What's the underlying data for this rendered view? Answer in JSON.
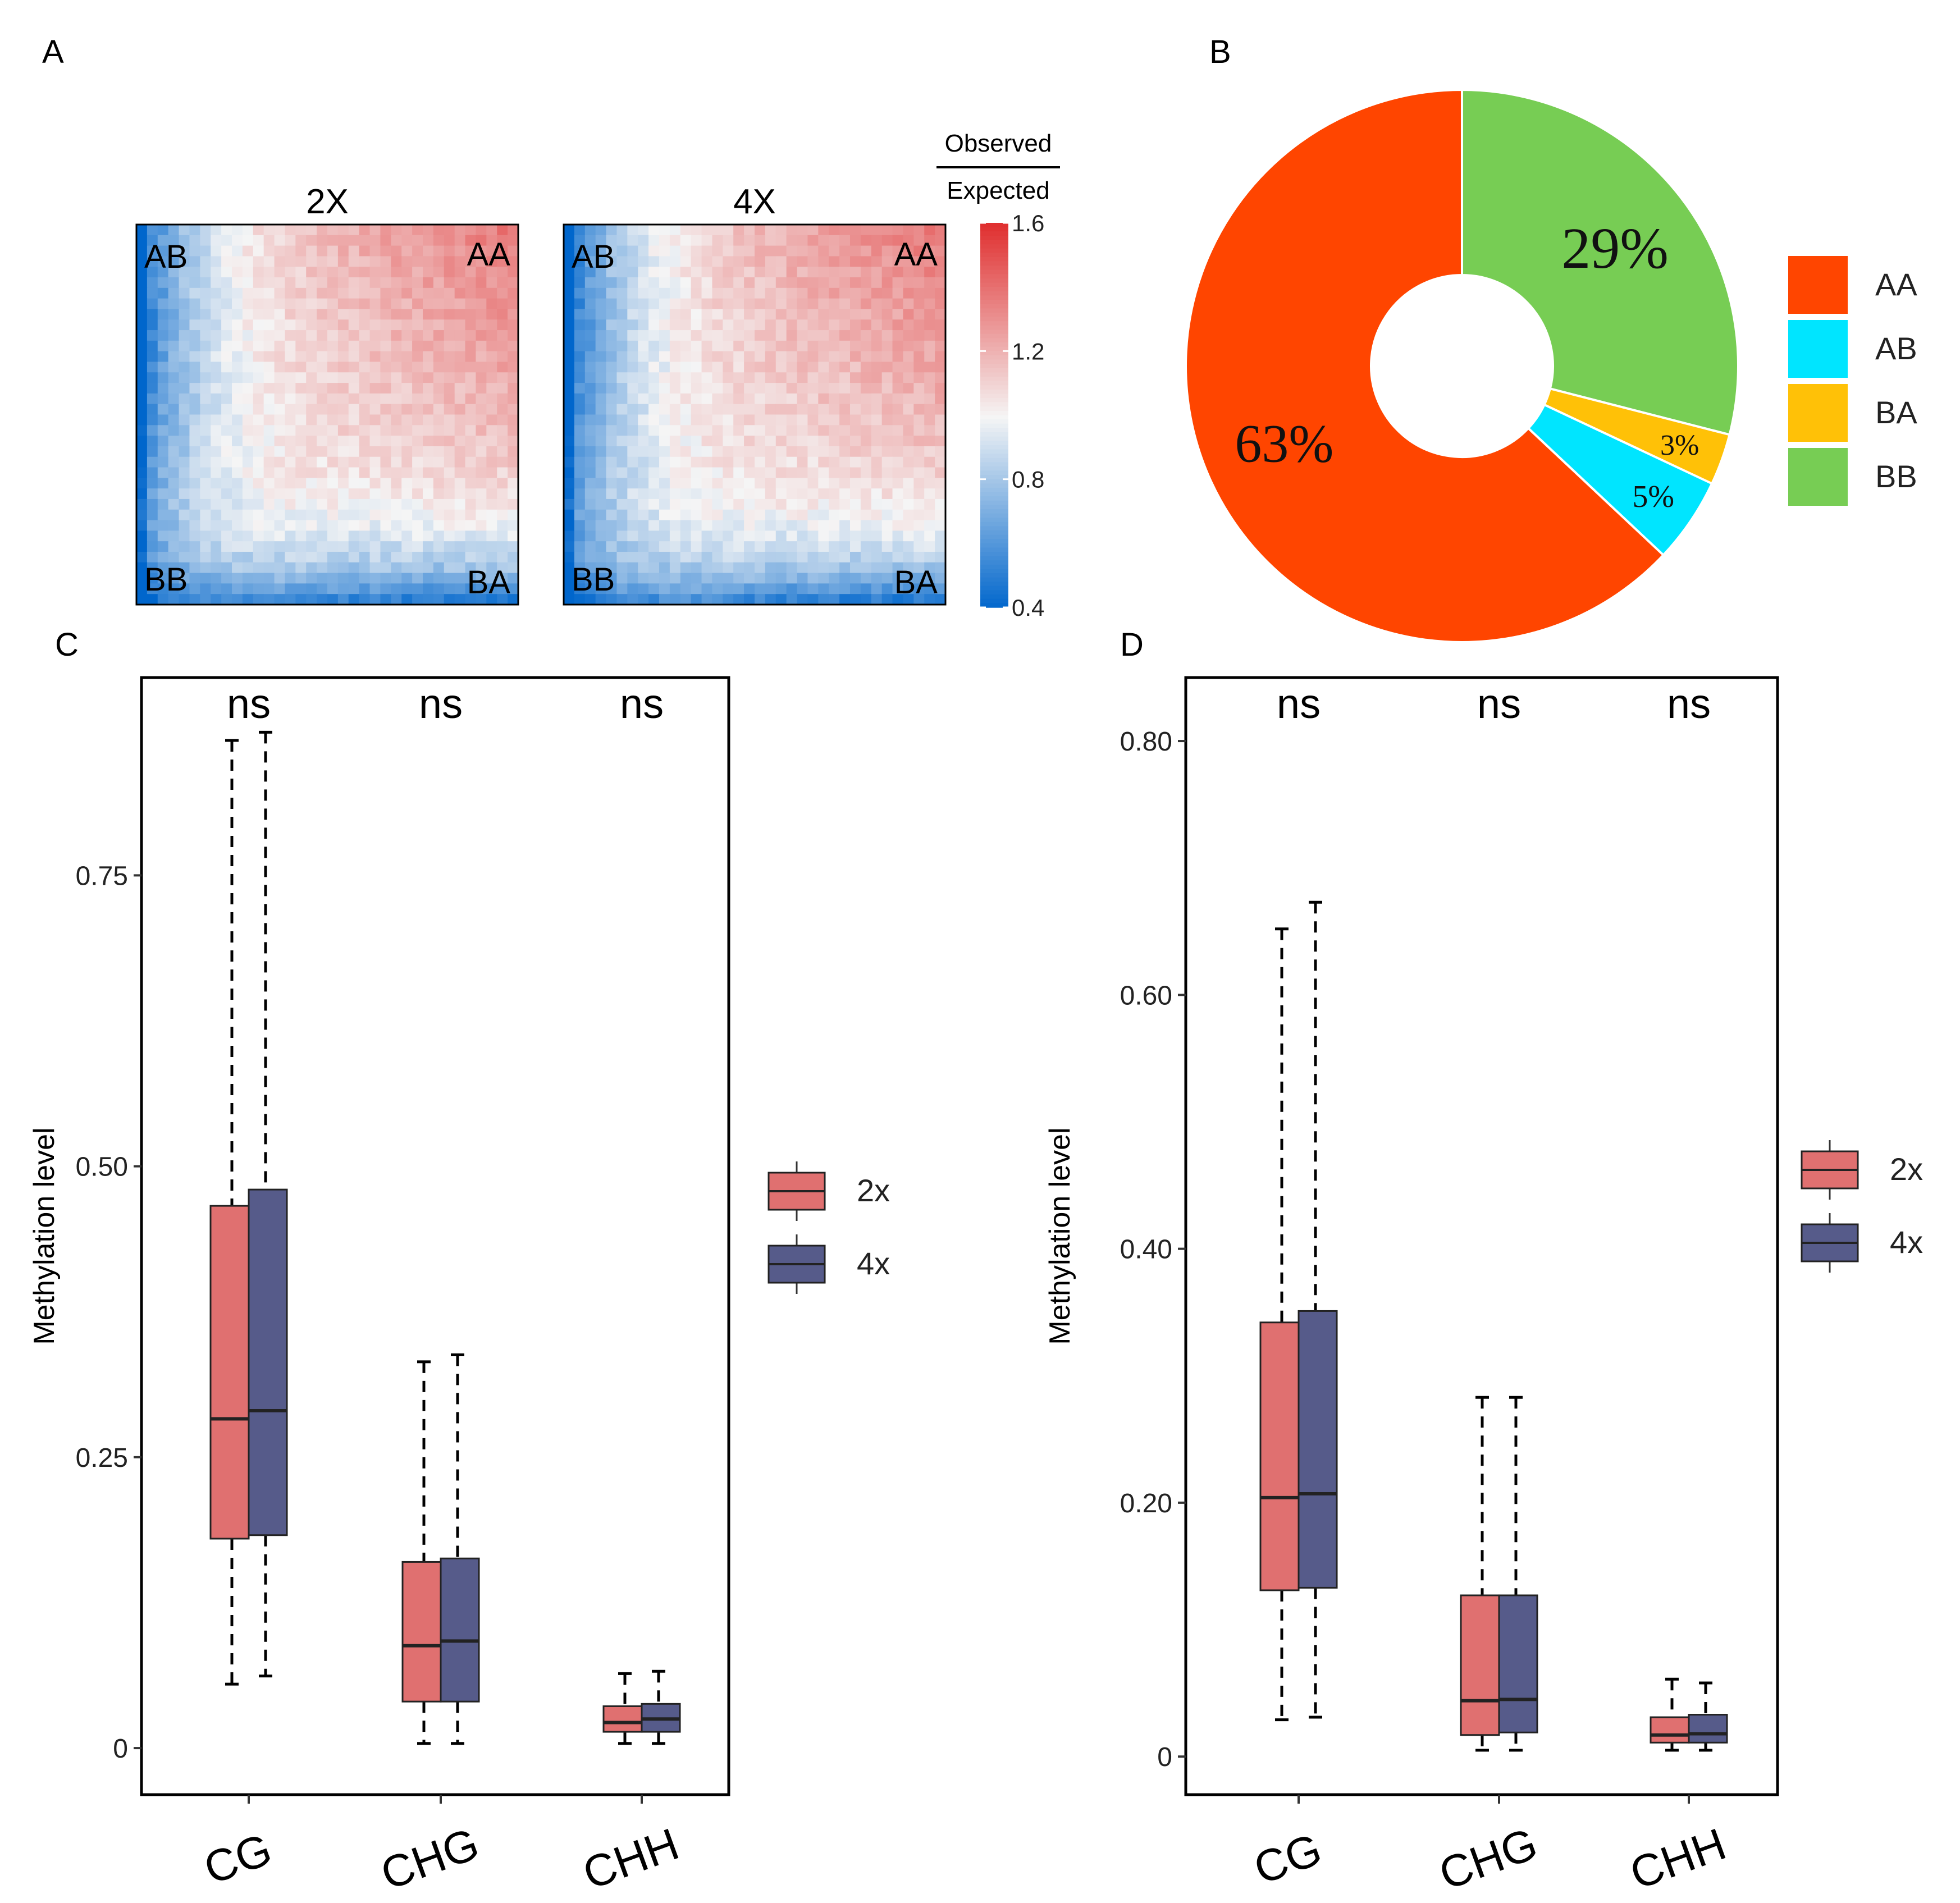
{
  "colors": {
    "red_box": "#e07070",
    "blue_box": "#565b8a",
    "pie_AA": "#ff4500",
    "pie_AB": "#00e5ff",
    "pie_BA": "#ffc107",
    "pie_BB": "#77cd54",
    "heat_low": "#0066cc",
    "heat_mid": "#f5f5f5",
    "heat_high": "#e03030"
  },
  "chart_data": [
    {
      "panel": "A",
      "type": "heatmap",
      "panel_label": "A",
      "maps": [
        {
          "title": "2X",
          "corners": {
            "top_left": "AB",
            "top_right": "AA",
            "bottom_left": "BB",
            "bottom_right": "BA"
          }
        },
        {
          "title": "4X",
          "corners": {
            "top_left": "AB",
            "top_right": "AA",
            "bottom_left": "BB",
            "bottom_right": "BA"
          }
        }
      ],
      "grid_size": 36,
      "colorbar": {
        "title_top": "Observed",
        "title_bottom": "Expected",
        "range": [
          0.4,
          1.6
        ],
        "ticks": [
          {
            "value": 1.6,
            "label": "1.6"
          },
          {
            "value": 1.2,
            "label": "1.2"
          },
          {
            "value": 0.8,
            "label": "0.8"
          },
          {
            "value": 0.4,
            "label": "0.4"
          }
        ]
      }
    },
    {
      "panel": "B",
      "type": "pie",
      "panel_label": "B",
      "donut": true,
      "slices": [
        {
          "label": "BB",
          "value": 29,
          "text": "29%",
          "color_key": "pie_BB"
        },
        {
          "label": "BA",
          "value": 3,
          "text": "3%",
          "color_key": "pie_BA"
        },
        {
          "label": "AB",
          "value": 5,
          "text": "5%",
          "color_key": "pie_AB"
        },
        {
          "label": "AA",
          "value": 63,
          "text": "63%",
          "color_key": "pie_AA"
        }
      ],
      "legend": [
        "AA",
        "AB",
        "BA",
        "BB"
      ]
    },
    {
      "panel": "C",
      "type": "box",
      "panel_label": "C",
      "ylabel": "Methylation level",
      "ylim": [
        -0.04,
        0.92
      ],
      "yticks": [
        {
          "value": 0,
          "label": "0"
        },
        {
          "value": 0.25,
          "label": "0.25"
        },
        {
          "value": 0.5,
          "label": "0.50"
        },
        {
          "value": 0.75,
          "label": "0.75"
        }
      ],
      "categories": [
        "CG",
        "CHG",
        "CHH"
      ],
      "significance": [
        "ns",
        "ns",
        "ns"
      ],
      "series": [
        {
          "name": "2x",
          "color_key": "red_box",
          "boxes": [
            {
              "min": 0.055,
              "q1": 0.18,
              "median": 0.283,
              "q3": 0.466,
              "max": 0.866
            },
            {
              "min": 0.004,
              "q1": 0.04,
              "median": 0.088,
              "q3": 0.16,
              "max": 0.332
            },
            {
              "min": 0.004,
              "q1": 0.014,
              "median": 0.022,
              "q3": 0.036,
              "max": 0.064
            }
          ]
        },
        {
          "name": "4x",
          "color_key": "blue_box",
          "boxes": [
            {
              "min": 0.062,
              "q1": 0.183,
              "median": 0.29,
              "q3": 0.48,
              "max": 0.873
            },
            {
              "min": 0.004,
              "q1": 0.04,
              "median": 0.092,
              "q3": 0.163,
              "max": 0.338
            },
            {
              "min": 0.004,
              "q1": 0.014,
              "median": 0.025,
              "q3": 0.038,
              "max": 0.066
            }
          ]
        }
      ]
    },
    {
      "panel": "D",
      "type": "box",
      "panel_label": "D",
      "ylabel": "Methylation level",
      "ylim": [
        -0.03,
        0.85
      ],
      "yticks": [
        {
          "value": 0,
          "label": "0"
        },
        {
          "value": 0.2,
          "label": "0.20"
        },
        {
          "value": 0.4,
          "label": "0.40"
        },
        {
          "value": 0.6,
          "label": "0.60"
        },
        {
          "value": 0.8,
          "label": "0.80"
        }
      ],
      "categories": [
        "CG",
        "CHG",
        "CHH"
      ],
      "significance": [
        "ns",
        "ns",
        "ns"
      ],
      "series": [
        {
          "name": "2x",
          "color_key": "red_box",
          "boxes": [
            {
              "min": 0.029,
              "q1": 0.131,
              "median": 0.204,
              "q3": 0.342,
              "max": 0.652
            },
            {
              "min": 0.005,
              "q1": 0.017,
              "median": 0.044,
              "q3": 0.127,
              "max": 0.283
            },
            {
              "min": 0.005,
              "q1": 0.011,
              "median": 0.017,
              "q3": 0.031,
              "max": 0.061
            }
          ]
        },
        {
          "name": "4x",
          "color_key": "blue_box",
          "boxes": [
            {
              "min": 0.031,
              "q1": 0.133,
              "median": 0.207,
              "q3": 0.351,
              "max": 0.673
            },
            {
              "min": 0.005,
              "q1": 0.019,
              "median": 0.045,
              "q3": 0.127,
              "max": 0.283
            },
            {
              "min": 0.005,
              "q1": 0.011,
              "median": 0.018,
              "q3": 0.033,
              "max": 0.058
            }
          ]
        }
      ]
    }
  ]
}
